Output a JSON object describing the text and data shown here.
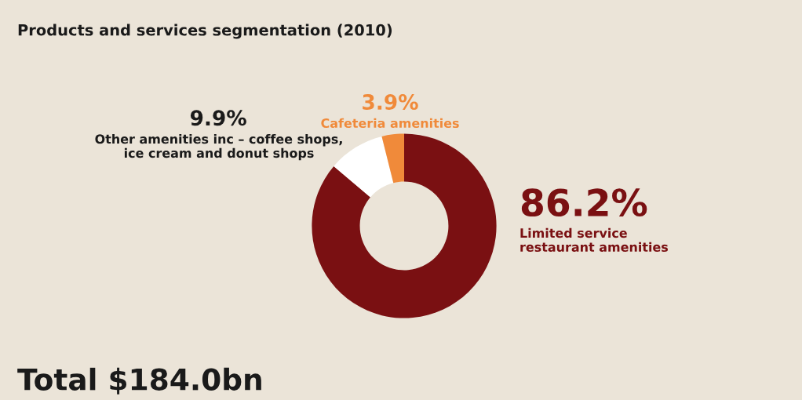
{
  "chart_data": {
    "type": "donut",
    "title": "Products and services segmentation (2010)",
    "categories": [
      "Limited service\nrestaurant amenities",
      "Other amenities inc – coffee shops,\nice cream and donut shops",
      "Cafeteria amenities"
    ],
    "values": [
      86.2,
      9.9,
      3.9
    ],
    "colors": [
      "#7a1012",
      "#ffffff",
      "#f08a3a"
    ],
    "value_labels": [
      "86.2%",
      "9.9%",
      "3.9%"
    ],
    "annotations": [
      "Total $184.0bn"
    ]
  }
}
